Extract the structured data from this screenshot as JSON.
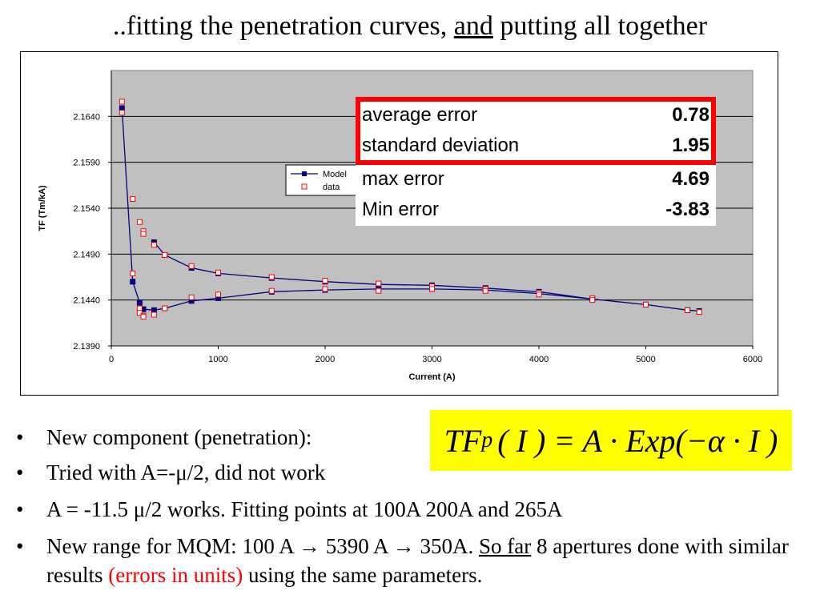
{
  "slide": {
    "title_pre": "..fitting the penetration curves, ",
    "title_underlined": "and",
    "title_post": " putting all together"
  },
  "stats_box": {
    "rows": [
      {
        "label": "average error",
        "value": "0.78"
      },
      {
        "label": "standard deviation",
        "value": "1.95"
      },
      {
        "label": "max error",
        "value": "4.69"
      },
      {
        "label": "Min error",
        "value": "-3.83"
      }
    ],
    "highlight_color": "#ff0000"
  },
  "formula": {
    "tf": "TF",
    "sub": "p",
    "rest": "( I ) = A · Exp(−α · I )"
  },
  "bullets": [
    {
      "parts": [
        {
          "t": "New component (penetration):"
        }
      ]
    },
    {
      "parts": [
        {
          "t": "Tried with A=-μ/2, did not work"
        }
      ]
    },
    {
      "parts": [
        {
          "t": "A = -11.5 μ/2 works. Fitting points at 100A 200A and 265A"
        }
      ]
    },
    {
      "parts": [
        {
          "t": "New range for MQM: 100 A "
        },
        {
          "t": "→",
          "cls": "arrow"
        },
        {
          "t": " 5390 A "
        },
        {
          "t": "→",
          "cls": "arrow"
        },
        {
          "t": " 350A. "
        },
        {
          "t": "So far",
          "cls": "u"
        },
        {
          "t": " 8 apertures done with similar results "
        },
        {
          "t": "(errors in units)",
          "cls": "red"
        },
        {
          "t": " using the same parameters."
        }
      ]
    }
  ],
  "chart_data": {
    "type": "line",
    "xlabel": "Current (A)",
    "ylabel": "TF (Tm/kA)",
    "xlim": [
      0,
      6000
    ],
    "ylim": [
      2.139,
      2.169
    ],
    "xticks": [
      0,
      1000,
      2000,
      3000,
      4000,
      5000,
      6000
    ],
    "yticks": [
      "2.1390",
      "2.1440",
      "2.1490",
      "2.1540",
      "2.1590",
      "2.1640"
    ],
    "grid": true,
    "legend_position": "center",
    "legend": [
      "Model",
      "data"
    ],
    "colors": {
      "model": "#000080",
      "data": "#ff0000",
      "plot_bg": "#c0c0c0"
    },
    "series": [
      {
        "name": "Model",
        "marker": "filled-square",
        "points": [
          [
            100,
            2.1649
          ],
          [
            200,
            2.146
          ],
          [
            265,
            2.1437
          ],
          [
            300,
            2.143
          ],
          [
            400,
            2.1429
          ],
          [
            500,
            2.1431
          ],
          [
            750,
            2.1439
          ],
          [
            1000,
            2.1442
          ],
          [
            1500,
            2.1449
          ],
          [
            2000,
            2.1451
          ],
          [
            2500,
            2.1452
          ],
          [
            3000,
            2.1452
          ],
          [
            3500,
            2.1451
          ],
          [
            4000,
            2.1447
          ],
          [
            4500,
            2.1441
          ],
          [
            5000,
            2.1435
          ],
          [
            5390,
            2.1429
          ],
          [
            5500,
            2.1428
          ],
          [
            5390,
            2.1429
          ],
          [
            5000,
            2.1435
          ],
          [
            4500,
            2.1441
          ],
          [
            4000,
            2.1449
          ],
          [
            3500,
            2.1453
          ],
          [
            3000,
            2.1456
          ],
          [
            2500,
            2.1457
          ],
          [
            2000,
            2.146
          ],
          [
            1500,
            2.1464
          ],
          [
            1000,
            2.1469
          ],
          [
            750,
            2.1475
          ],
          [
            500,
            2.1489
          ],
          [
            400,
            2.1503
          ]
        ]
      },
      {
        "name": "data",
        "marker": "hollow-square",
        "points": [
          [
            100,
            2.1656
          ],
          [
            100,
            2.1644
          ],
          [
            200,
            2.155
          ],
          [
            200,
            2.1469
          ],
          [
            265,
            2.1525
          ],
          [
            265,
            2.1431
          ],
          [
            265,
            2.1426
          ],
          [
            300,
            2.1515
          ],
          [
            300,
            2.1512
          ],
          [
            300,
            2.1423
          ],
          [
            300,
            2.1422
          ],
          [
            400,
            2.15
          ],
          [
            400,
            2.1424
          ],
          [
            500,
            2.1489
          ],
          [
            500,
            2.1431
          ],
          [
            750,
            2.1477
          ],
          [
            750,
            2.1443
          ],
          [
            1000,
            2.147
          ],
          [
            1000,
            2.1446
          ],
          [
            1500,
            2.1465
          ],
          [
            1500,
            2.145
          ],
          [
            2000,
            2.1461
          ],
          [
            2000,
            2.1452
          ],
          [
            2500,
            2.1458
          ],
          [
            2500,
            2.145
          ],
          [
            3000,
            2.1455
          ],
          [
            3000,
            2.1452
          ],
          [
            3500,
            2.1452
          ],
          [
            3500,
            2.145
          ],
          [
            4000,
            2.1448
          ],
          [
            4000,
            2.1446
          ],
          [
            4500,
            2.1442
          ],
          [
            4500,
            2.144
          ],
          [
            5000,
            2.1435
          ],
          [
            5390,
            2.1429
          ],
          [
            5500,
            2.1427
          ]
        ]
      }
    ]
  }
}
